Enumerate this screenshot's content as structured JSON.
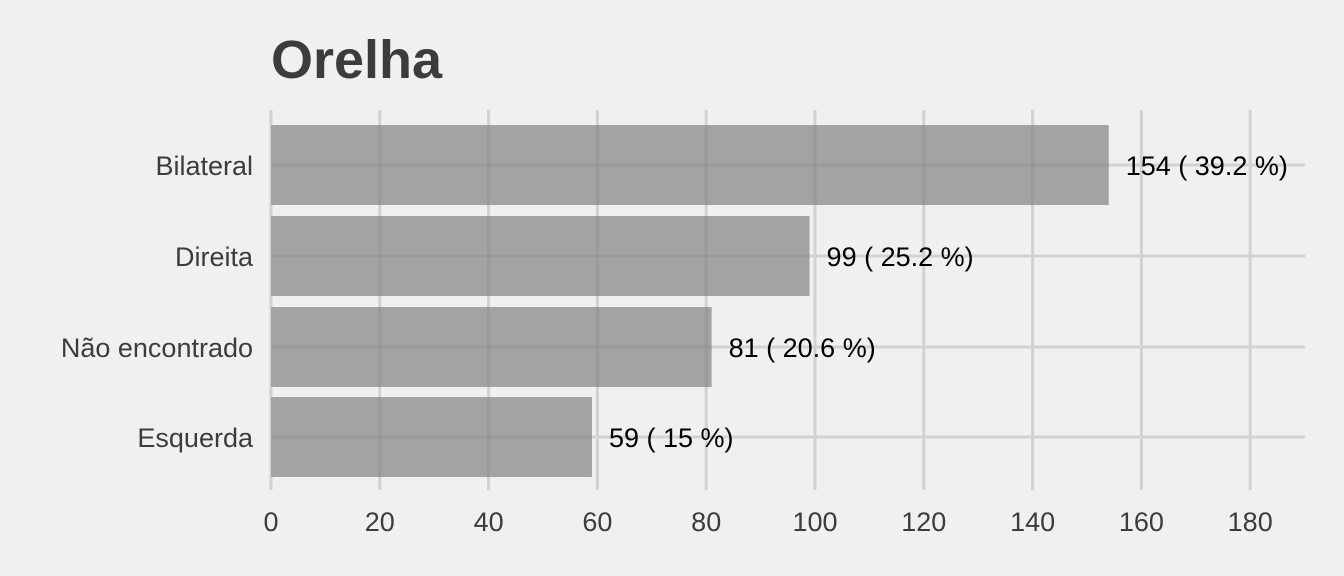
{
  "chart_data": {
    "type": "bar",
    "orientation": "horizontal",
    "title": "Orelha",
    "xlabel": "",
    "ylabel": "",
    "categories": [
      "Bilateral",
      "Direita",
      "Não encontrado",
      "Esquerda"
    ],
    "values": [
      154,
      99,
      81,
      59
    ],
    "data_labels": [
      "154 ( 39.2 %)",
      "99 ( 25.2 %)",
      "81 ( 20.6 %)",
      "59 ( 15 %)"
    ],
    "x_ticks": [
      "0",
      "20",
      "40",
      "60",
      "80",
      "100",
      "120",
      "140",
      "160",
      "180"
    ],
    "xlim": [
      0,
      190
    ],
    "grid": true,
    "legend": "none",
    "colors": {
      "background": "#f0f0f0",
      "bar": "#a3a3a3",
      "grid": "#d2d2d2",
      "text": "#3c3c3c",
      "data_label": "#000000"
    }
  }
}
